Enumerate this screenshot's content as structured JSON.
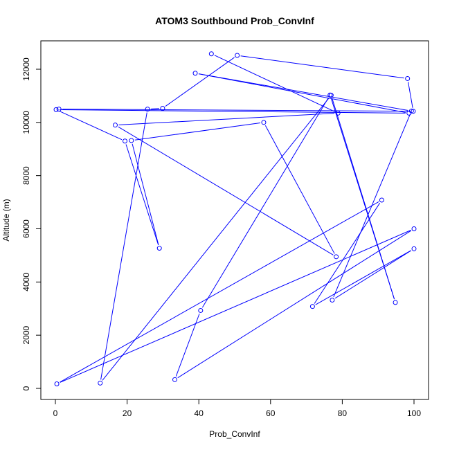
{
  "chart_data": {
    "type": "line",
    "title": "ATOM3 Southbound Prob_ConvInf",
    "xlabel": "Prob_ConvInf",
    "ylabel": "Altitude (m)",
    "xlim": [
      0,
      100
    ],
    "ylim": [
      0,
      12000
    ],
    "xticks": [
      "0",
      "20",
      "40",
      "60",
      "80",
      "100"
    ],
    "yticks": [
      "0",
      "2000",
      "4000",
      "6000",
      "8000",
      "10000",
      "12000"
    ],
    "grid": false,
    "legend": "none",
    "markers": "open-circle",
    "color": "#0000ff",
    "series": [
      {
        "x": [
          43.5,
          78.8,
          16.7,
          78.3,
          58.1,
          21.2,
          29.0,
          19.4,
          0.2,
          98.6,
          39.0,
          99.3,
          77.2,
          100.0,
          71.7,
          91.0,
          0.4,
          100.0,
          33.3,
          40.5,
          76.6,
          94.8,
          76.9,
          12.5,
          25.7,
          29.9,
          50.7,
          98.2,
          99.8,
          1.0
        ],
        "y": [
          12580,
          10350,
          9900,
          4950,
          10000,
          9320,
          5270,
          9300,
          10480,
          10350,
          11850,
          10430,
          3320,
          5250,
          3080,
          7080,
          170,
          6000,
          330,
          2930,
          11030,
          3230,
          11020,
          200,
          10500,
          10530,
          12520,
          11650,
          10420,
          10500
        ]
      }
    ]
  }
}
